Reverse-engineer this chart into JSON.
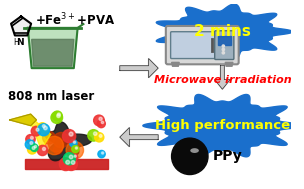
{
  "bg_color": "#ffffff",
  "layout": {
    "top_right_label": "2 mins",
    "mid_right_label": "Microwave irradiation",
    "bottom_left_label": "808 nm laser",
    "bottom_right_label": "High performance",
    "ppy_label": "PPy"
  },
  "colors": {
    "cloud_blue": "#1a6fcc",
    "text_yellow": "#FFFF00",
    "text_red": "#FF0000",
    "text_black": "#000000",
    "arrow_dark": "#555555",
    "laser_yellow": "#FFEE00"
  }
}
